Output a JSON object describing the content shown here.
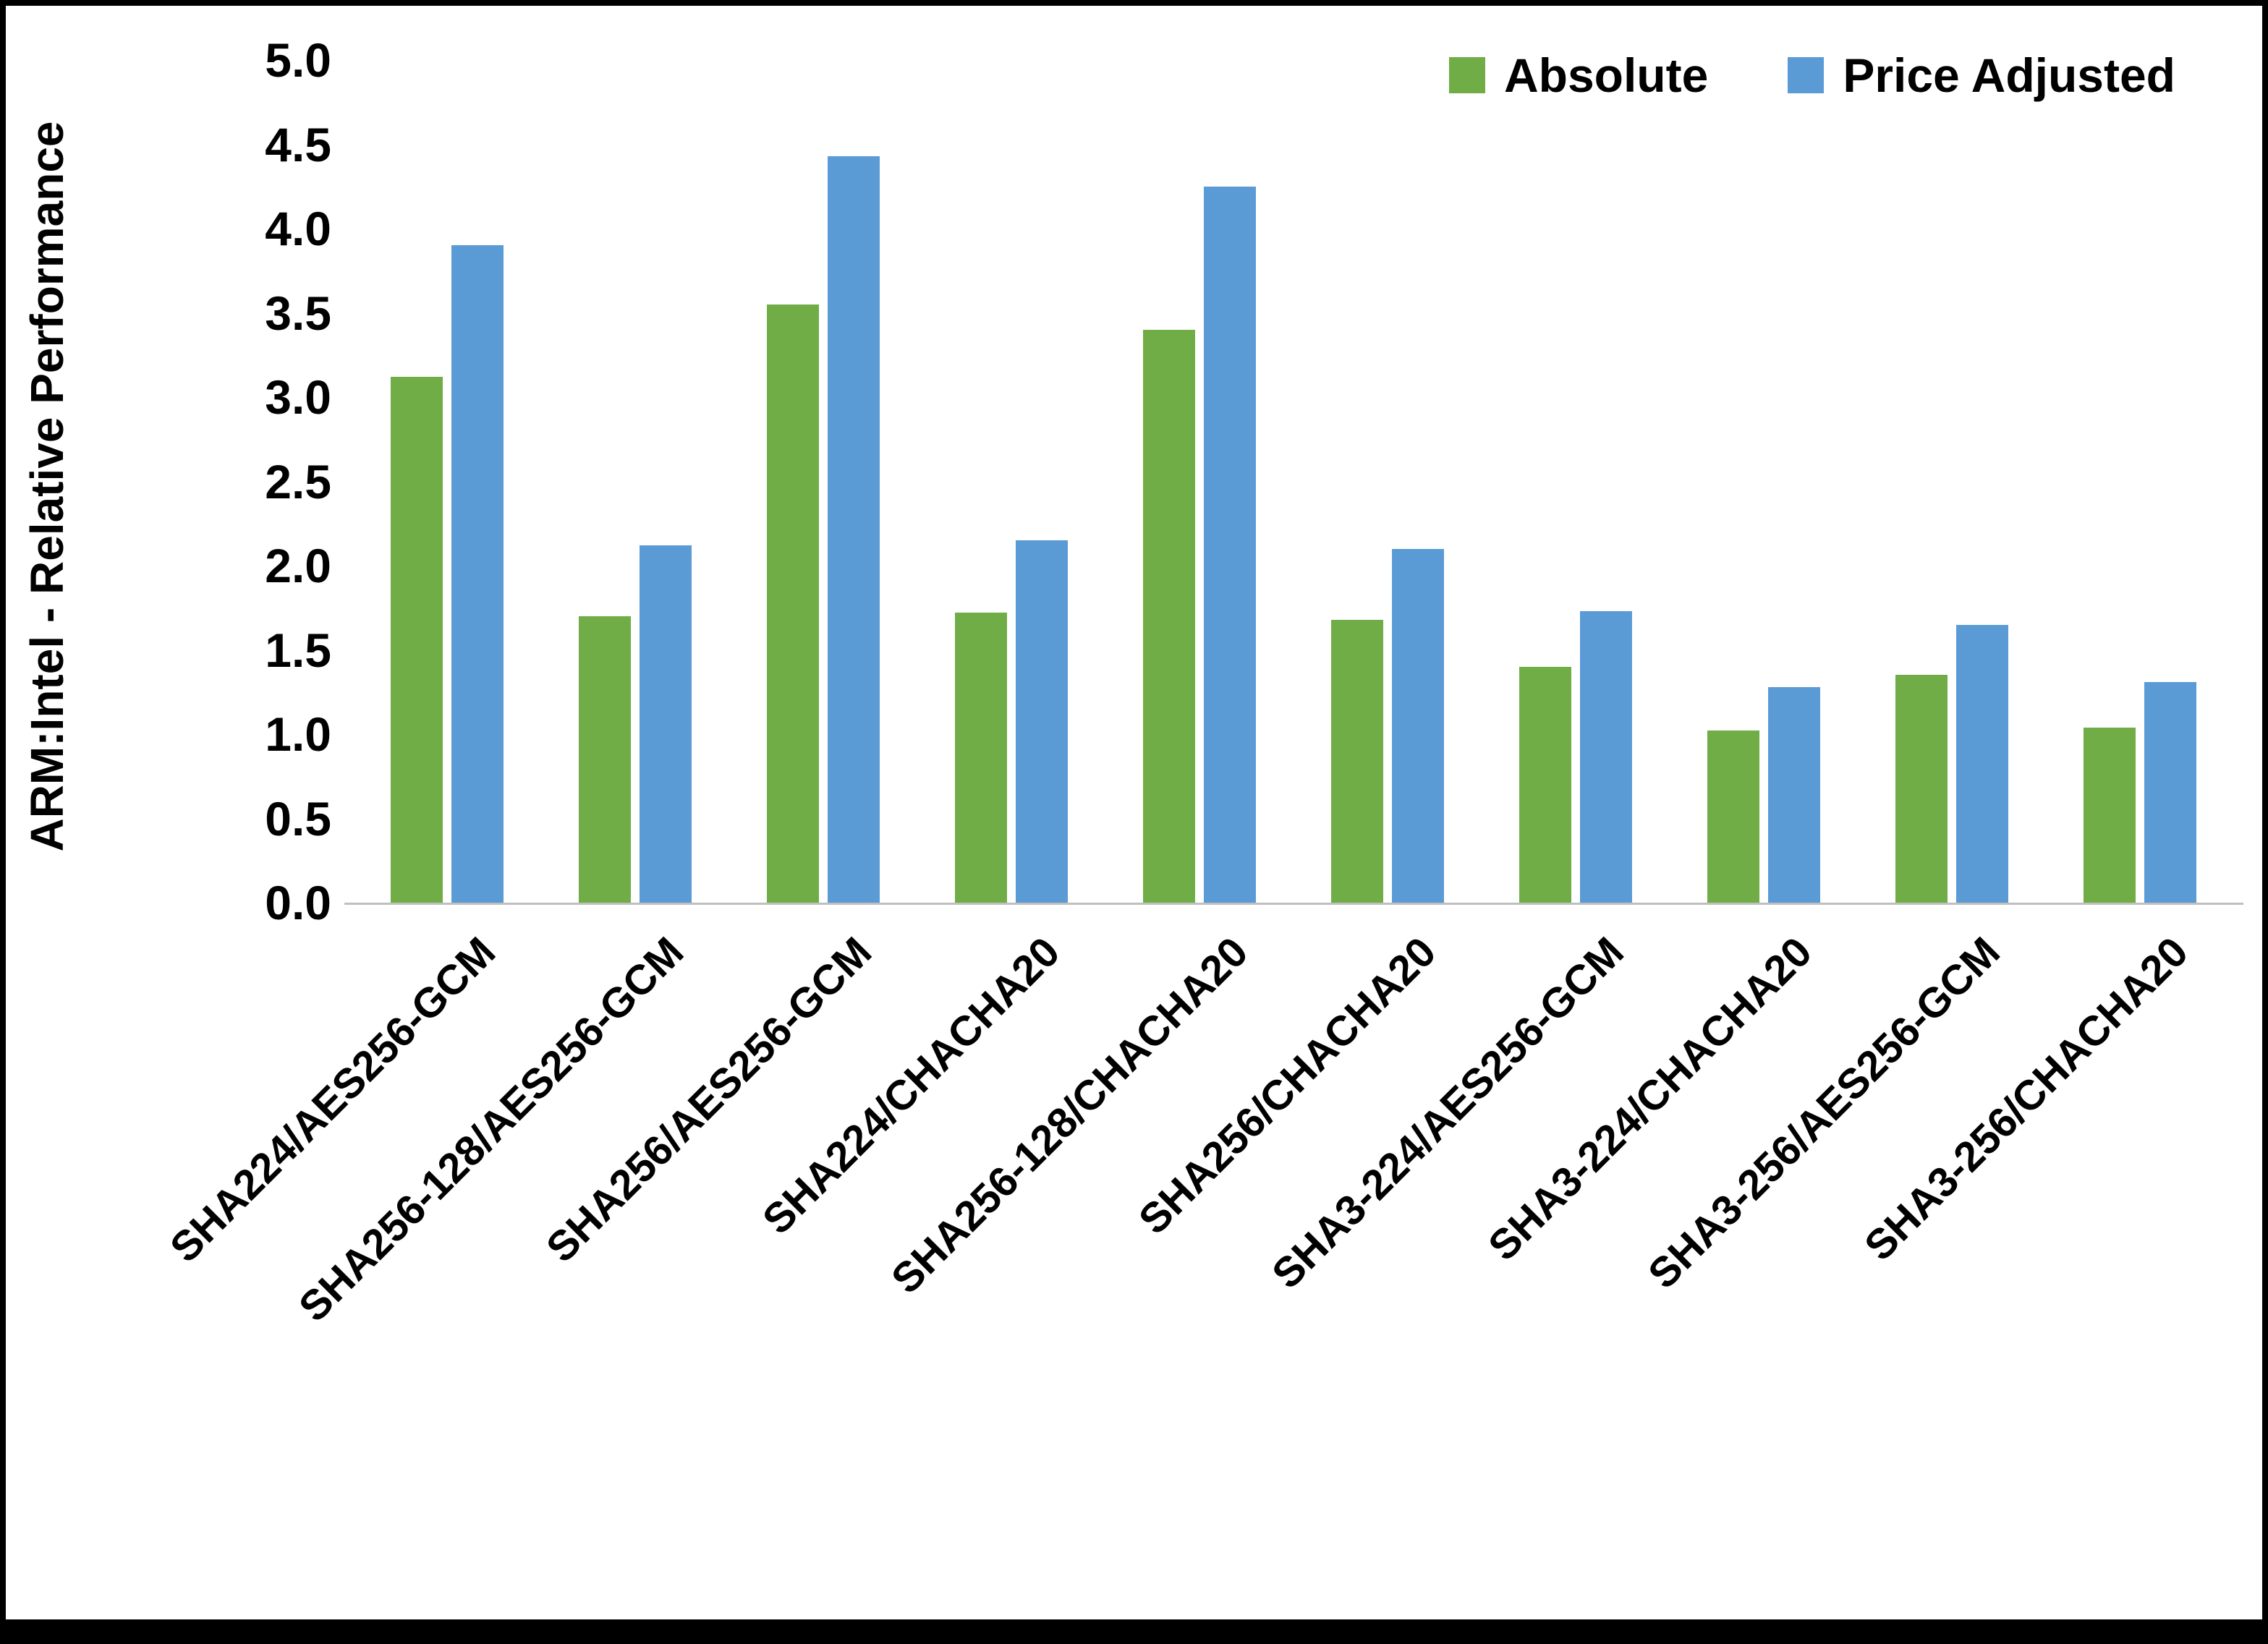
{
  "chart_data": {
    "type": "bar",
    "title": "",
    "ylabel": "ARM:Intel - Relative Performance",
    "xlabel": "",
    "ylim": [
      0,
      5
    ],
    "y_tick_step": 0.5,
    "grid": false,
    "legend_position": "top-right",
    "categories": [
      "SHA224/AES256-GCM",
      "SHA256-128/AES256-GCM",
      "SHA256/AES256-GCM",
      "SHA224/CHACHA20",
      "SHA256-128/CHACHA20",
      "SHA256/CHACHA20",
      "SHA3-224/AES256-GCM",
      "SHA3-224/CHACHA20",
      "SHA3-256/AES256-GCM",
      "SHA3-256/CHACHA20"
    ],
    "series": [
      {
        "name": "Absolute",
        "color": "#70AD47",
        "values": [
          3.12,
          1.7,
          3.55,
          1.72,
          3.4,
          1.68,
          1.4,
          1.02,
          1.35,
          1.04
        ]
      },
      {
        "name": "Price Adjusted",
        "color": "#5B9BD5",
        "values": [
          3.9,
          2.12,
          4.43,
          2.15,
          4.25,
          2.1,
          1.73,
          1.28,
          1.65,
          1.31
        ]
      }
    ]
  },
  "colors": {
    "axis_line": "#BFBFBF",
    "text": "#000000",
    "frame": "#000000"
  }
}
